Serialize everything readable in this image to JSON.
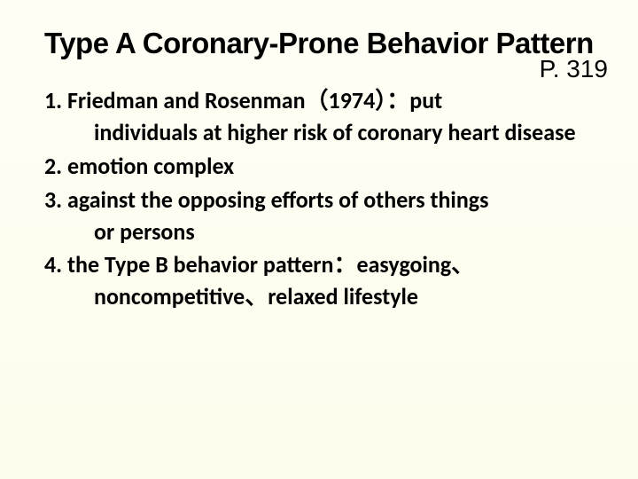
{
  "title": "Type A Coronary-Prone Behavior Pattern",
  "page_ref": "P. 319",
  "items": [
    {
      "num": "1.",
      "lead": " Friedman and Rosenman（1974）：put",
      "body": "individuals at higher risk of coronary heart disease"
    },
    {
      "num": "2.",
      "lead": " emotion complex",
      "body": ""
    },
    {
      "num": "3.",
      "lead": " against the opposing efforts of others things",
      "body": "or persons"
    },
    {
      "num": "4.",
      "lead": " the Type B behavior pattern：easygoing、",
      "body": "noncompetitive、relaxed lifestyle"
    }
  ],
  "colors": {
    "background_top": "#fffef5",
    "background_bottom": "#fdfcec",
    "text": "#000000"
  },
  "typography": {
    "title_fontsize": 33,
    "title_weight": 900,
    "body_fontsize": 26,
    "body_weight": 700,
    "page_ref_fontsize": 28
  }
}
